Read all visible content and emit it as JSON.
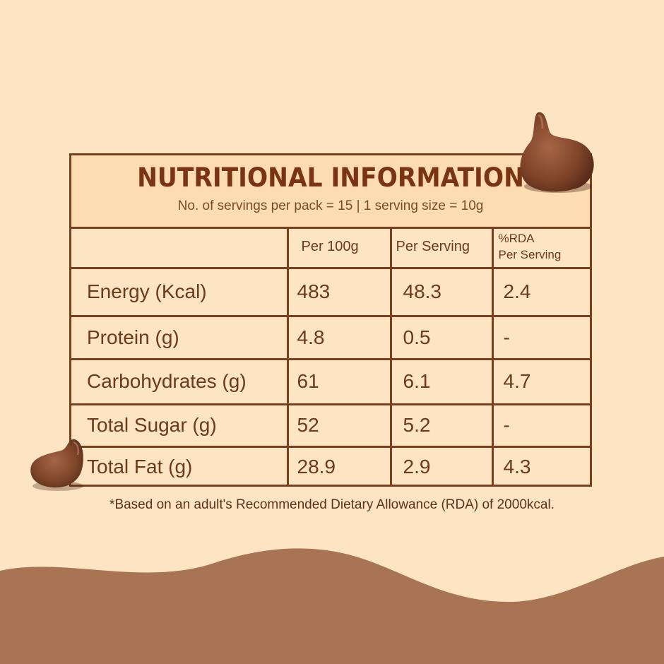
{
  "panel": {
    "title": "NUTRITIONAL INFORMATION",
    "subtitle": "No. of servings per pack = 15 | 1 serving size = 10g"
  },
  "table": {
    "headers": {
      "nutrient": "",
      "per_100g": "Per 100g",
      "per_serving": "Per Serving",
      "rda_line1": "%RDA",
      "rda_line2": "Per Serving"
    },
    "rows": [
      {
        "nutrient": "Energy (Kcal)",
        "per_100g": "483",
        "per_serving": "48.3",
        "rda": "2.4"
      },
      {
        "nutrient": "Protein (g)",
        "per_100g": "4.8",
        "per_serving": "0.5",
        "rda": "-"
      },
      {
        "nutrient": "Carbohydrates (g)",
        "per_100g": "61",
        "per_serving": "6.1",
        "rda": "4.7"
      },
      {
        "nutrient": "Total Sugar (g)",
        "per_100g": "52",
        "per_serving": "5.2",
        "rda": "-"
      },
      {
        "nutrient": "Total Fat (g)",
        "per_100g": "28.9",
        "per_serving": "2.9",
        "rda": "4.3"
      }
    ]
  },
  "footnote": "*Based on an adult's Recommended Dietary Allowance (RDA) of 2000kcal.",
  "decorations": {
    "top_right": "chocolate-chip-icon",
    "left": "chocolate-chip-icon",
    "bottom": "chocolate-wave"
  },
  "colors": {
    "background": "#fde4c3",
    "title_band": "#fddcb2",
    "border": "#7a3f1e",
    "text": "#6b3a1a",
    "wave": "#a97453"
  }
}
